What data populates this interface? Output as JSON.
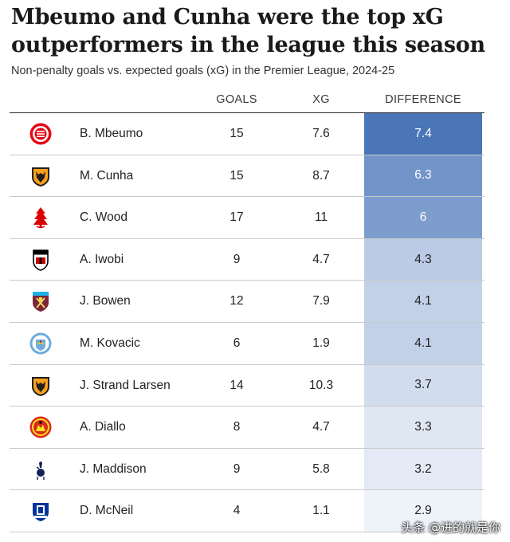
{
  "header": {
    "title": "Mbeumo and Cunha were the top xG outperformers in the league this season",
    "subtitle": "Non-penalty goals vs. expected goals (xG) in the Premier League, 2024-25"
  },
  "columns": {
    "goals": "GOALS",
    "xg": "XG",
    "difference": "DIFFERENCE"
  },
  "colors": {
    "diff_max": "#4a76b8",
    "diff_min": "#eef2f9",
    "rule": "#2a2a2a"
  },
  "chart_data": {
    "type": "table",
    "title": "Mbeumo and Cunha were the top xG outperformers in the league this season",
    "subtitle": "Non-penalty goals vs. expected goals (xG) in the Premier League, 2024-25",
    "columns": [
      "GOALS",
      "XG",
      "DIFFERENCE"
    ],
    "rows": [
      {
        "player": "B. Mbeumo",
        "club_icon": "brentford-badge-icon",
        "goals": "15",
        "xg": "7.6",
        "difference": "7.4",
        "diff_value": 7.4
      },
      {
        "player": "M. Cunha",
        "club_icon": "wolves-badge-icon",
        "goals": "15",
        "xg": "8.7",
        "difference": "6.3",
        "diff_value": 6.3
      },
      {
        "player": "C. Wood",
        "club_icon": "nottingham-forest-badge-icon",
        "goals": "17",
        "xg": "11",
        "difference": "6",
        "diff_value": 6
      },
      {
        "player": "A. Iwobi",
        "club_icon": "fulham-badge-icon",
        "goals": "9",
        "xg": "4.7",
        "difference": "4.3",
        "diff_value": 4.3
      },
      {
        "player": "J. Bowen",
        "club_icon": "west-ham-badge-icon",
        "goals": "12",
        "xg": "7.9",
        "difference": "4.1",
        "diff_value": 4.1
      },
      {
        "player": "M. Kovacic",
        "club_icon": "man-city-badge-icon",
        "goals": "6",
        "xg": "1.9",
        "difference": "4.1",
        "diff_value": 4.1
      },
      {
        "player": "J. Strand Larsen",
        "club_icon": "wolves-badge-icon",
        "goals": "14",
        "xg": "10.3",
        "difference": "3.7",
        "diff_value": 3.7
      },
      {
        "player": "A. Diallo",
        "club_icon": "man-united-badge-icon",
        "goals": "8",
        "xg": "4.7",
        "difference": "3.3",
        "diff_value": 3.3
      },
      {
        "player": "J. Maddison",
        "club_icon": "tottenham-badge-icon",
        "goals": "9",
        "xg": "5.8",
        "difference": "3.2",
        "diff_value": 3.2
      },
      {
        "player": "D. McNeil",
        "club_icon": "everton-badge-icon",
        "goals": "4",
        "xg": "1.1",
        "difference": "2.9",
        "diff_value": 2.9
      }
    ]
  },
  "watermark": "头条 @进的就是你"
}
